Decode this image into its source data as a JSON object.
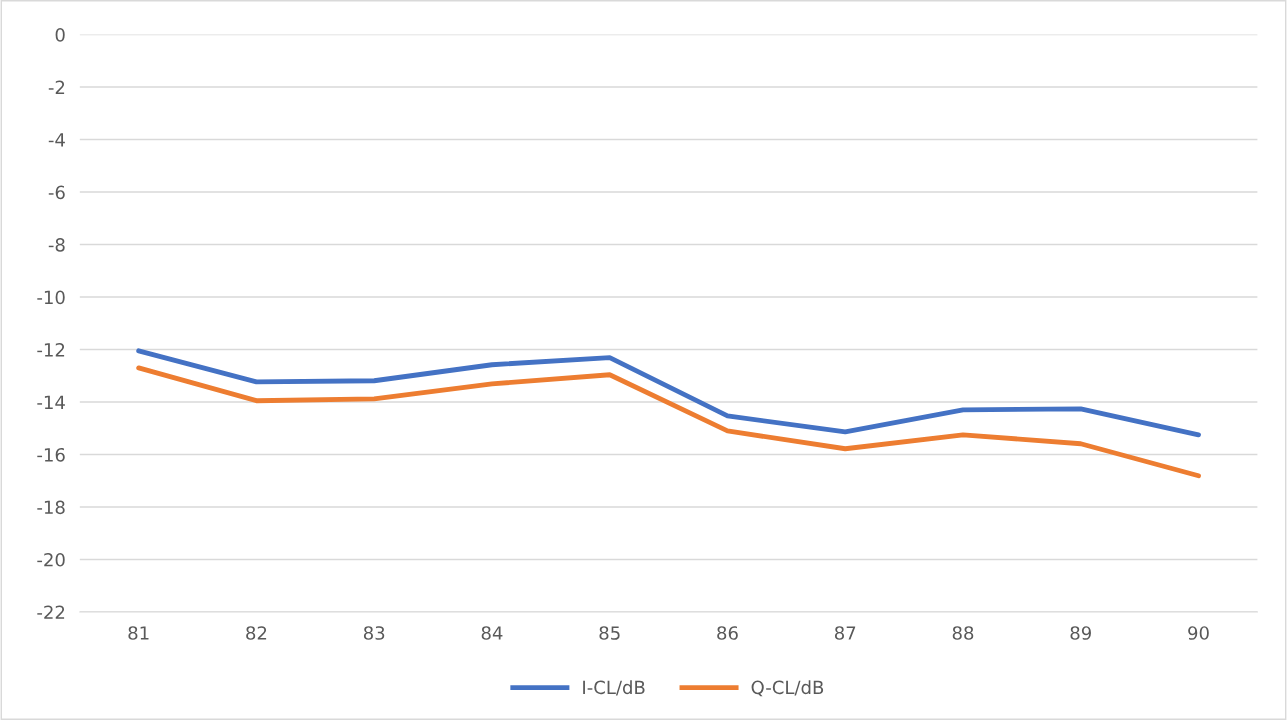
{
  "chart_data": {
    "type": "line",
    "categories": [
      "81",
      "82",
      "83",
      "84",
      "85",
      "86",
      "87",
      "88",
      "89",
      "90"
    ],
    "series": [
      {
        "name": "I-CL/dB",
        "color": "#4472c4",
        "values": [
          -12.05,
          -13.23,
          -13.19,
          -12.58,
          -12.31,
          -14.53,
          -15.14,
          -14.3,
          -14.26,
          -15.25
        ]
      },
      {
        "name": "Q-CL/dB",
        "color": "#ed7d31",
        "values": [
          -12.7,
          -13.95,
          -13.88,
          -13.31,
          -12.96,
          -15.1,
          -15.78,
          -15.25,
          -15.59,
          -16.81
        ]
      }
    ],
    "ylim": [
      -22,
      0
    ],
    "yticks": [
      -22,
      -20,
      -18,
      -16,
      -14,
      -12,
      -10,
      -8,
      -6,
      -4,
      -2,
      0
    ],
    "grid": "y",
    "legend": "bottom",
    "marker": "none",
    "line_style": "solid"
  }
}
